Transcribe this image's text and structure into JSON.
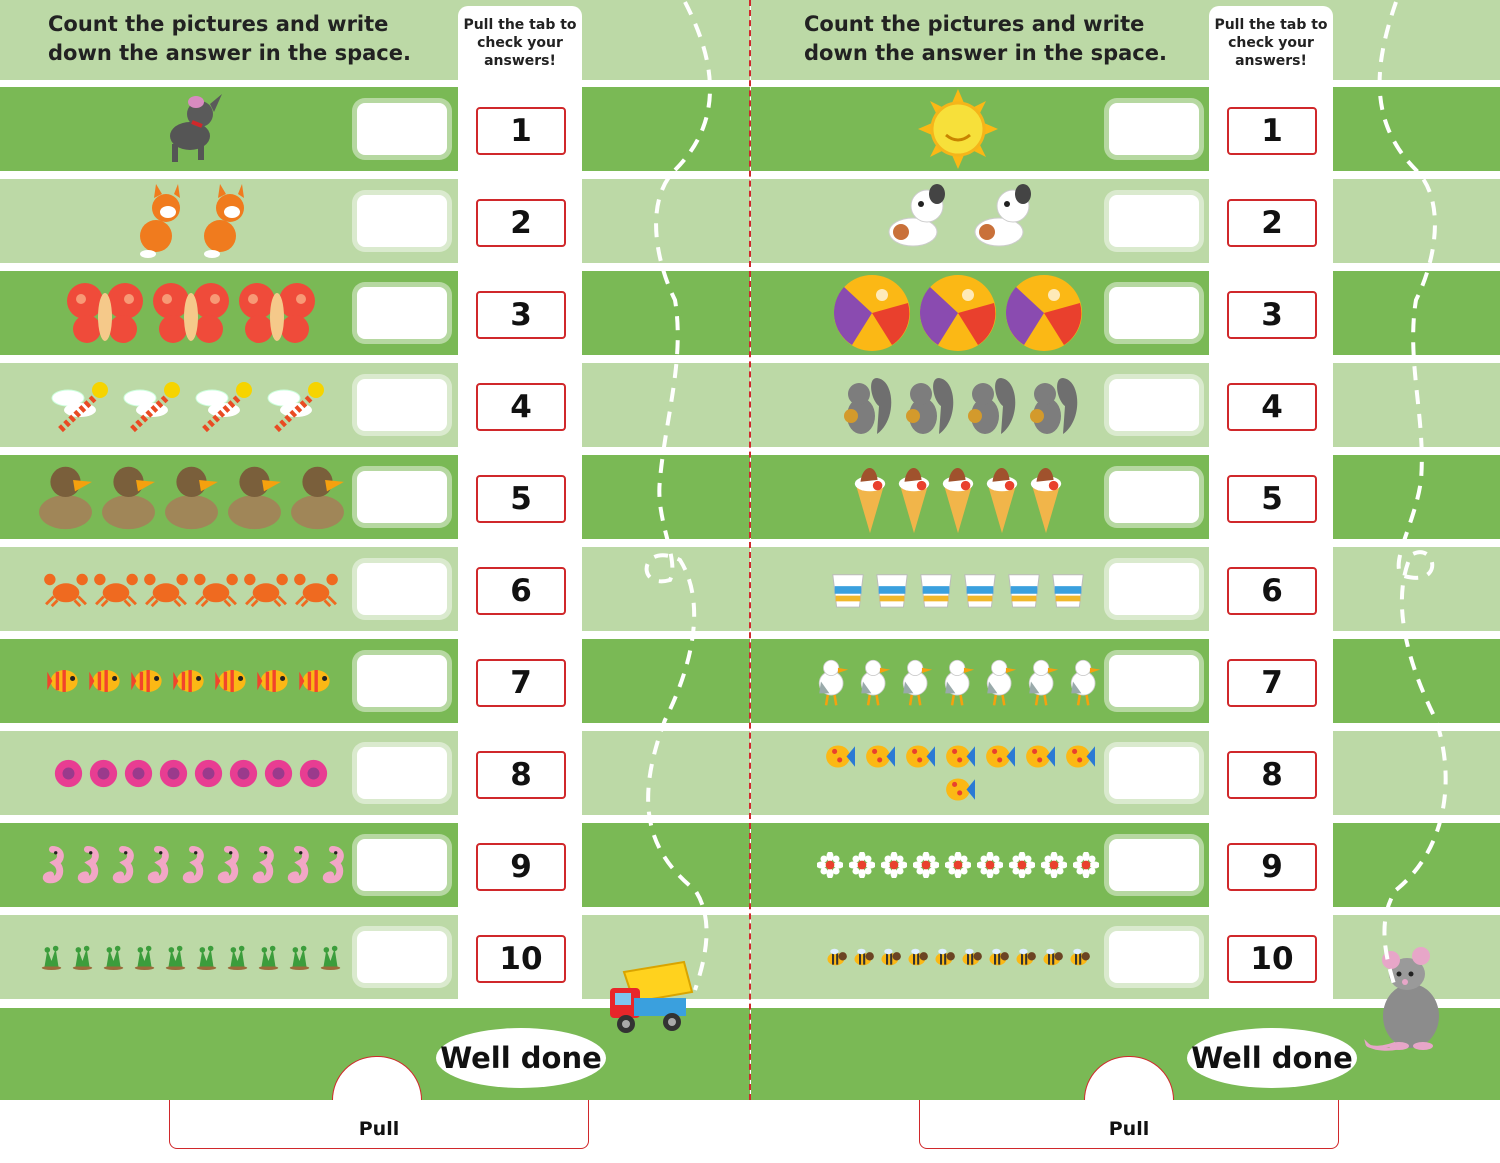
{
  "instructions": "Count the pictures and write down the answer in the space.",
  "strip_hint": "Pull the tab to check your answers!",
  "answers": [
    "1",
    "2",
    "3",
    "4",
    "5",
    "6",
    "7",
    "8",
    "9",
    "10"
  ],
  "well_done": "Well done",
  "pull_label": "Pull",
  "colors": {
    "dark_green": "#7ab955",
    "light_green": "#bcd9a6",
    "answer_red": "#d0282b",
    "white": "#ffffff"
  },
  "left_page": {
    "rows": [
      {
        "count": 1,
        "item": "dog-icon"
      },
      {
        "count": 2,
        "item": "cat-icon"
      },
      {
        "count": 3,
        "item": "butterfly-icon"
      },
      {
        "count": 4,
        "item": "dragonfly-icon"
      },
      {
        "count": 5,
        "item": "duck-icon"
      },
      {
        "count": 6,
        "item": "crab-icon"
      },
      {
        "count": 7,
        "item": "fish-icon"
      },
      {
        "count": 8,
        "item": "flower-icon"
      },
      {
        "count": 9,
        "item": "seahorse-icon"
      },
      {
        "count": 10,
        "item": "frog-icon"
      }
    ],
    "decoration": "toy-truck-icon"
  },
  "right_page": {
    "rows": [
      {
        "count": 1,
        "item": "sun-icon"
      },
      {
        "count": 2,
        "item": "puppy-icon"
      },
      {
        "count": 3,
        "item": "beach-ball-icon"
      },
      {
        "count": 4,
        "item": "squirrel-icon"
      },
      {
        "count": 5,
        "item": "ice-cream-icon"
      },
      {
        "count": 6,
        "item": "bucket-icon"
      },
      {
        "count": 7,
        "item": "seagull-icon"
      },
      {
        "count": 8,
        "item": "tropical-fish-icon"
      },
      {
        "count": 9,
        "item": "daisy-icon"
      },
      {
        "count": 10,
        "item": "bee-icon"
      }
    ],
    "decoration": "mouse-icon"
  }
}
